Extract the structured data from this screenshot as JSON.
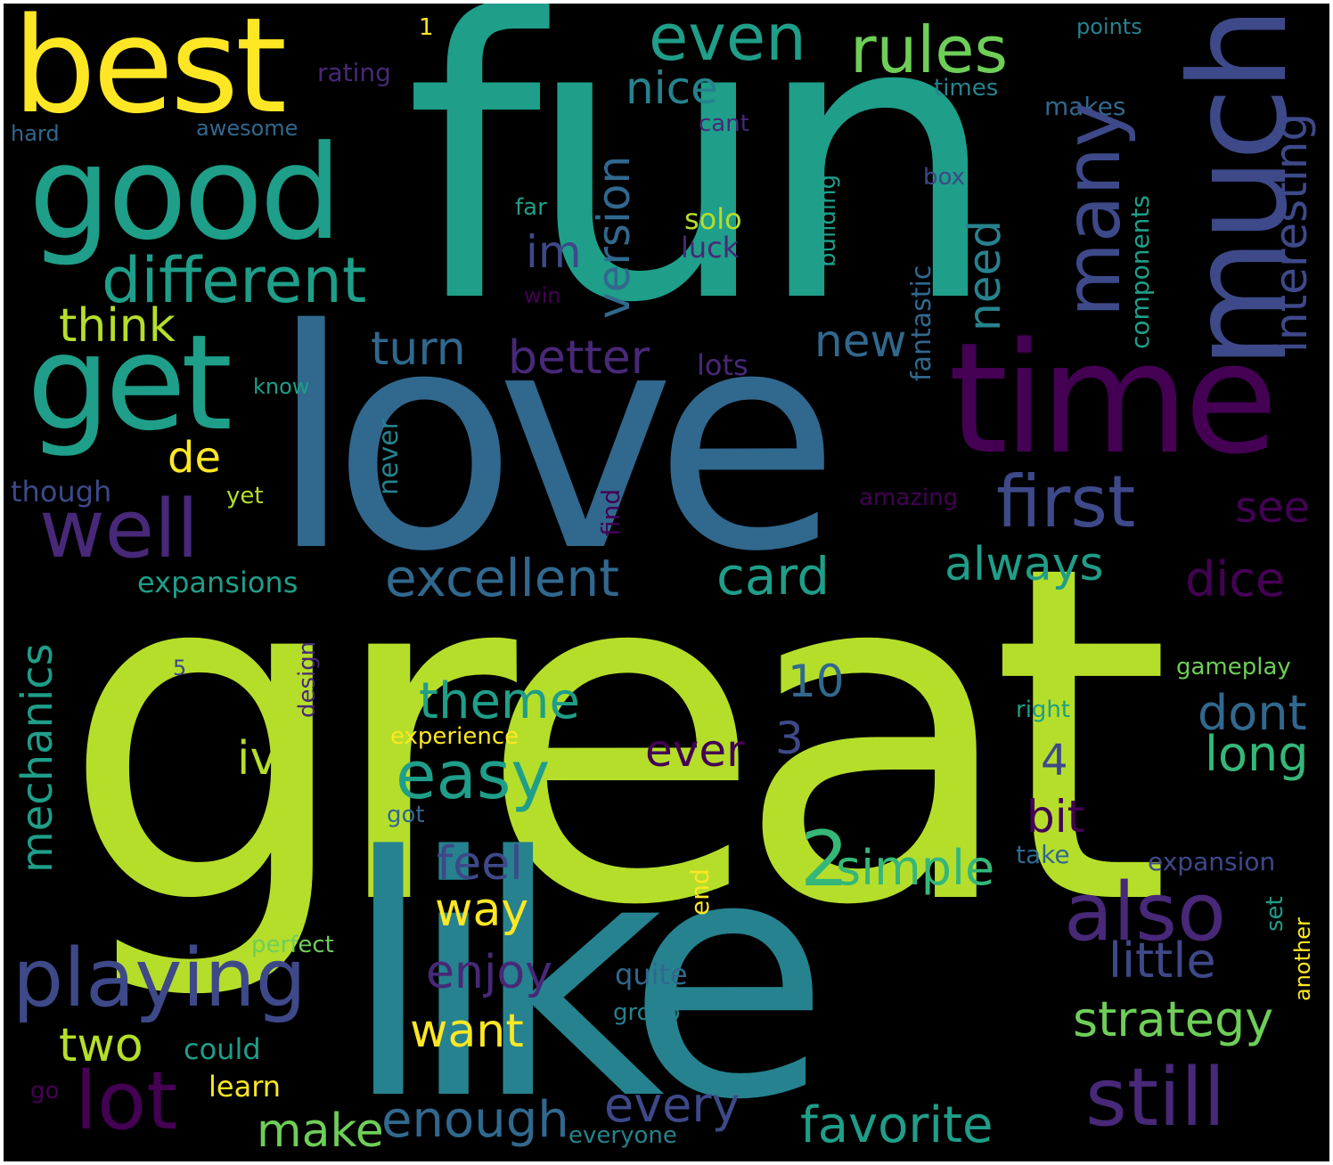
{
  "colors": {
    "background": "#000000",
    "palette": [
      "#440154",
      "#482878",
      "#3e4989",
      "#31688e",
      "#26828e",
      "#1f9e89",
      "#35b779",
      "#6ece58",
      "#b5de2b",
      "#fde725"
    ]
  },
  "words": [
    {
      "text": "great",
      "color": "#b5de2b"
    },
    {
      "text": "fun",
      "color": "#1f9e89"
    },
    {
      "text": "love",
      "color": "#31688e"
    },
    {
      "text": "like",
      "color": "#26828e"
    },
    {
      "text": "time",
      "color": "#440154"
    },
    {
      "text": "best",
      "color": "#fde725"
    },
    {
      "text": "good",
      "color": "#1f9e89"
    },
    {
      "text": "get",
      "color": "#1f9e89"
    },
    {
      "text": "much",
      "color": "#3e4989"
    },
    {
      "text": "even",
      "color": "#1f9e89"
    },
    {
      "text": "rules",
      "color": "#6ece58"
    },
    {
      "text": "different",
      "color": "#1f9e89"
    },
    {
      "text": "many",
      "color": "#3e4989"
    },
    {
      "text": "well",
      "color": "#482878"
    },
    {
      "text": "first",
      "color": "#3e4989"
    },
    {
      "text": "playing",
      "color": "#3e4989"
    },
    {
      "text": "also",
      "color": "#482878"
    },
    {
      "text": "still",
      "color": "#482878"
    },
    {
      "text": "lot",
      "color": "#440154"
    },
    {
      "text": "excellent",
      "color": "#31688e"
    },
    {
      "text": "easy",
      "color": "#1f9e89"
    },
    {
      "text": "theme",
      "color": "#1f9e89"
    },
    {
      "text": "card",
      "color": "#1f9e89"
    },
    {
      "text": "always",
      "color": "#1f9e89"
    },
    {
      "text": "simple",
      "color": "#35b779"
    },
    {
      "text": "2",
      "color": "#35b779"
    },
    {
      "text": "dice",
      "color": "#440154"
    },
    {
      "text": "dont",
      "color": "#31688e"
    },
    {
      "text": "long",
      "color": "#35b779"
    },
    {
      "text": "little",
      "color": "#3e4989"
    },
    {
      "text": "strategy",
      "color": "#6ece58"
    },
    {
      "text": "favorite",
      "color": "#1f9e89"
    },
    {
      "text": "enough",
      "color": "#31688e"
    },
    {
      "text": "make",
      "color": "#6ece58"
    },
    {
      "text": "two",
      "color": "#b5de2b"
    },
    {
      "text": "want",
      "color": "#fde725"
    },
    {
      "text": "enjoy",
      "color": "#482878"
    },
    {
      "text": "every",
      "color": "#3e4989"
    },
    {
      "text": "feel",
      "color": "#3e4989"
    },
    {
      "text": "way",
      "color": "#fde725"
    },
    {
      "text": "better",
      "color": "#482878"
    },
    {
      "text": "turn",
      "color": "#31688e"
    },
    {
      "text": "new",
      "color": "#31688e"
    },
    {
      "text": "think",
      "color": "#b5de2b"
    },
    {
      "text": "nice",
      "color": "#26828e"
    },
    {
      "text": "version",
      "color": "#31688e"
    },
    {
      "text": "need",
      "color": "#26828e"
    },
    {
      "text": "interesting",
      "color": "#3e4989"
    },
    {
      "text": "mechanics",
      "color": "#1f9e89"
    },
    {
      "text": "ive",
      "color": "#b5de2b"
    },
    {
      "text": "ever",
      "color": "#440154"
    },
    {
      "text": "bit",
      "color": "#440154"
    },
    {
      "text": "see",
      "color": "#440154"
    },
    {
      "text": "de",
      "color": "#fde725"
    },
    {
      "text": "im",
      "color": "#3e4989"
    },
    {
      "text": "10",
      "color": "#31688e"
    },
    {
      "text": "3",
      "color": "#3e4989"
    },
    {
      "text": "4",
      "color": "#3e4989"
    },
    {
      "text": "lots",
      "color": "#482878"
    },
    {
      "text": "solo",
      "color": "#b5de2b"
    },
    {
      "text": "luck",
      "color": "#482878"
    },
    {
      "text": "expansions",
      "color": "#1f9e89"
    },
    {
      "text": "could",
      "color": "#1f9e89"
    },
    {
      "text": "learn",
      "color": "#fde725"
    },
    {
      "text": "quite",
      "color": "#31688e"
    },
    {
      "text": "group",
      "color": "#26828e"
    },
    {
      "text": "perfect",
      "color": "#6ece58"
    },
    {
      "text": "experience",
      "color": "#fde725"
    },
    {
      "text": "gameplay",
      "color": "#6ece58"
    },
    {
      "text": "right",
      "color": "#1f9e89"
    },
    {
      "text": "expansion",
      "color": "#3e4989"
    },
    {
      "text": "take",
      "color": "#31688e"
    },
    {
      "text": "building",
      "color": "#1f9e89"
    },
    {
      "text": "fantastic",
      "color": "#31688e"
    },
    {
      "text": "components",
      "color": "#1f9e89"
    },
    {
      "text": "rating",
      "color": "#482878"
    },
    {
      "text": "awesome",
      "color": "#31688e"
    },
    {
      "text": "hard",
      "color": "#31688e"
    },
    {
      "text": "points",
      "color": "#26828e"
    },
    {
      "text": "times",
      "color": "#26828e"
    },
    {
      "text": "makes",
      "color": "#31688e"
    },
    {
      "text": "cant",
      "color": "#482878"
    },
    {
      "text": "box",
      "color": "#3e4989"
    },
    {
      "text": "far",
      "color": "#1f9e89"
    },
    {
      "text": "win",
      "color": "#440154"
    },
    {
      "text": "know",
      "color": "#1f9e89"
    },
    {
      "text": "though",
      "color": "#3e4989"
    },
    {
      "text": "yet",
      "color": "#b5de2b"
    },
    {
      "text": "never",
      "color": "#26828e"
    },
    {
      "text": "find",
      "color": "#440154"
    },
    {
      "text": "amazing",
      "color": "#440154"
    },
    {
      "text": "design",
      "color": "#482878"
    },
    {
      "text": "5",
      "color": "#3e4989"
    },
    {
      "text": "got",
      "color": "#31688e"
    },
    {
      "text": "end",
      "color": "#fde725"
    },
    {
      "text": "set",
      "color": "#1f9e89"
    },
    {
      "text": "another",
      "color": "#fde725"
    },
    {
      "text": "go",
      "color": "#440154"
    },
    {
      "text": "everyone",
      "color": "#26828e"
    },
    {
      "text": "1",
      "color": "#fde725"
    }
  ]
}
